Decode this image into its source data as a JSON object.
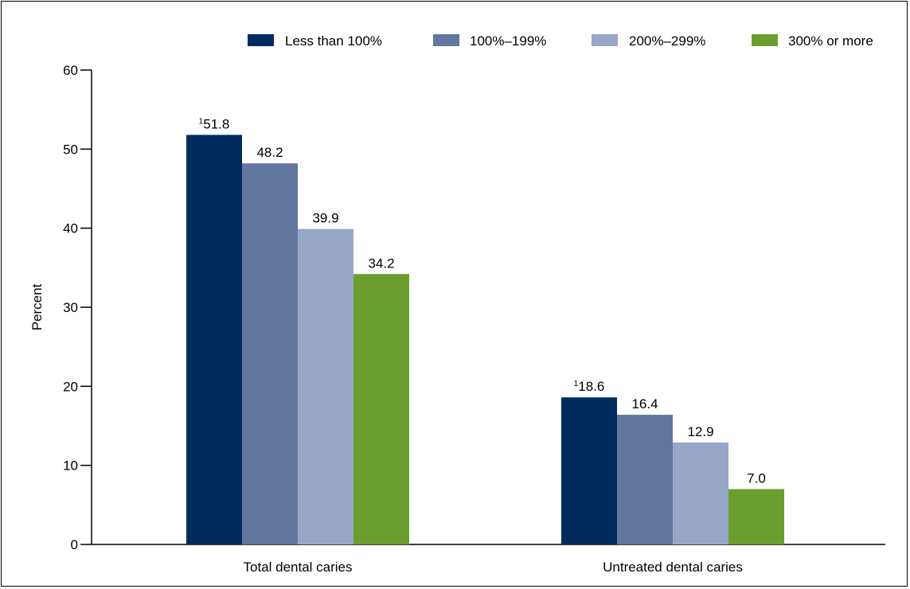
{
  "chart_data": {
    "type": "bar",
    "categories": [
      "Total dental caries",
      "Untreated dental caries"
    ],
    "series": [
      {
        "name": "Less than 100%",
        "values": [
          51.8,
          18.6
        ],
        "labels": [
          "51.8",
          "18.6"
        ],
        "footnotes": [
          "1",
          "1"
        ],
        "color": "#002b5c"
      },
      {
        "name": "100%–199%",
        "values": [
          48.2,
          16.4
        ],
        "labels": [
          "48.2",
          "16.4"
        ],
        "footnotes": [
          "",
          ""
        ],
        "color": "#62769e"
      },
      {
        "name": "200%–299%",
        "values": [
          39.9,
          12.9
        ],
        "labels": [
          "39.9",
          "12.9"
        ],
        "footnotes": [
          "",
          ""
        ],
        "color": "#98a6c7"
      },
      {
        "name": "300% or more",
        "values": [
          34.2,
          7.0
        ],
        "labels": [
          "34.2",
          "7.0"
        ],
        "footnotes": [
          "",
          ""
        ],
        "color": "#6b9e2f"
      }
    ],
    "ylabel": "Percent",
    "ylim": [
      0,
      60
    ],
    "yticks": [
      0,
      10,
      20,
      30,
      40,
      50,
      60
    ],
    "grid": false,
    "legend_position": "top-right"
  }
}
